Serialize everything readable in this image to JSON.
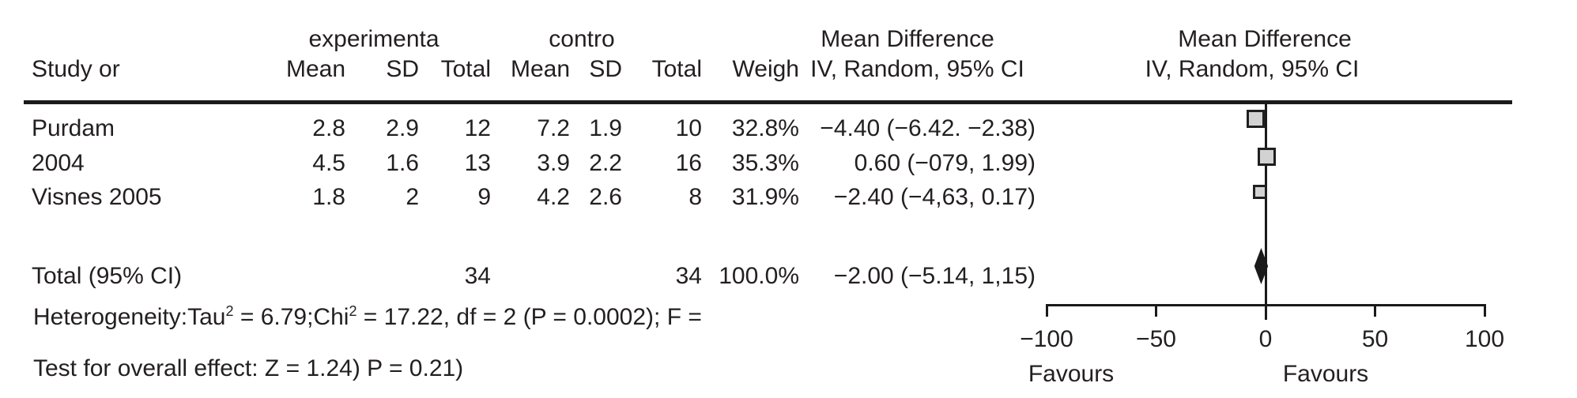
{
  "colors": {
    "text": "#231f20",
    "line": "#1a1a1a",
    "marker_fill": "#d2d2d2",
    "marker_border": "#1f1f1f",
    "diamond_fill": "#1a1a1a"
  },
  "table": {
    "group_headers": {
      "experimental": "experimenta",
      "control": "contro",
      "md_left": "Mean Difference",
      "md_right": "Mean Difference"
    },
    "col_headers": {
      "study": "Study or",
      "mean_exp": "Mean",
      "sd_exp": "SD",
      "total_exp": "Total",
      "mean_ctrl": "Mean",
      "sd_ctrl": "SD",
      "total_ctrl": "Total",
      "weight": "Weigh",
      "iv_left": "IV, Random, 95% CI",
      "iv_right": "IV, Random, 95% CI"
    },
    "rows": [
      {
        "study": "Purdam",
        "mean1": "2.8",
        "sd1": "2.9",
        "total1": "12",
        "mean2": "7.2",
        "sd2": "1.9",
        "total2": "10",
        "weight": "32.8%",
        "ci": "−4.40 (−6.42. −2.38)"
      },
      {
        "study": "2004",
        "mean1": "4.5",
        "sd1": "1.6",
        "total1": "13",
        "mean2": "3.9",
        "sd2": "2.2",
        "total2": "16",
        "weight": "35.3%",
        "ci": "0.60 (−079, 1.99)"
      },
      {
        "study": "Visnes 2005",
        "mean1": "1.8",
        "sd1": "2",
        "total1": "9",
        "mean2": "4.2",
        "sd2": "2.6",
        "total2": "8",
        "weight": "31.9%",
        "ci": "−2.40 (−4,63, 0.17)"
      }
    ],
    "total_row": {
      "label": "Total (95% CI)",
      "total1": "34",
      "total2": "34",
      "weight": "100.0%",
      "ci": "−2.00 (−5.14, 1,15)"
    },
    "footer": {
      "het_p1": "Heterogeneity:Tau",
      "het_sup1": "2",
      "het_p2": " = 6.79;Chi",
      "het_sup2": "2",
      "het_p3": " = 17.22, df = 2 (P = 0.0002); F =",
      "test_line": "Test for overall effect: Z = 1.24) P = 0.21)"
    }
  },
  "chart_data": {
    "type": "forest",
    "effect_measure": "Mean Difference, IV, Random, 95% CI",
    "xlim": [
      -100,
      100
    ],
    "x_ticks": [
      -100,
      -50,
      0,
      50,
      100
    ],
    "x_tick_labels": [
      "−100",
      "−50",
      "0",
      "50",
      "100"
    ],
    "favours_left": "Favours",
    "favours_right": "Favours",
    "studies": [
      {
        "label": "Purdam",
        "mean_exp": 2.8,
        "sd_exp": 2.9,
        "n_exp": 12,
        "mean_ctrl": 7.2,
        "sd_ctrl": 1.9,
        "n_ctrl": 10,
        "weight_pct": 32.8,
        "md": -4.4,
        "ci_low": -6.42,
        "ci_high": -2.38
      },
      {
        "label": "2004",
        "mean_exp": 4.5,
        "sd_exp": 1.6,
        "n_exp": 13,
        "mean_ctrl": 3.9,
        "sd_ctrl": 2.2,
        "n_ctrl": 16,
        "weight_pct": 35.3,
        "md": 0.6,
        "ci_low": -0.79,
        "ci_high": 1.99
      },
      {
        "label": "Visnes 2005",
        "mean_exp": 1.8,
        "sd_exp": 2,
        "n_exp": 9,
        "mean_ctrl": 4.2,
        "sd_ctrl": 2.6,
        "n_ctrl": 8,
        "weight_pct": 31.9,
        "md": -2.4,
        "ci_low": -4.63,
        "ci_high": 0.17
      }
    ],
    "total": {
      "label": "Total (95% CI)",
      "n_exp": 34,
      "n_ctrl": 34,
      "weight_pct": 100.0,
      "md": -2.0,
      "ci_low": -5.14,
      "ci_high": 1.15
    },
    "heterogeneity": "Tau2 = 6.79; Chi2 = 17.22, df = 2 (P = 0.0002)",
    "overall_effect": "Z = 1.24, P = 0.21"
  }
}
